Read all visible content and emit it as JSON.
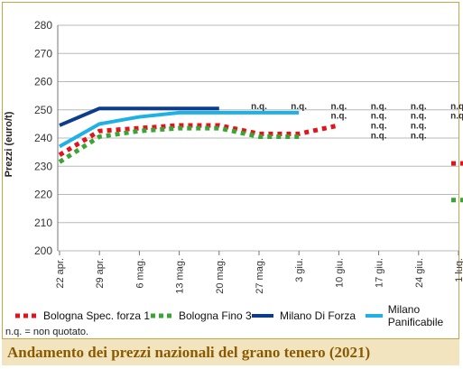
{
  "chart_data": {
    "type": "line",
    "title": "Andamento dei prezzi nazionali del grano tenero (2021)",
    "ylabel": "Prezzi (euro/t)",
    "xlabel": "",
    "ylim": [
      200,
      280
    ],
    "yticks": [
      "200",
      "210",
      "220",
      "230",
      "240",
      "250",
      "260",
      "270",
      "280"
    ],
    "categories": [
      "22 apr.",
      "29 apr.",
      "6 mag.",
      "13 mag.",
      "20 mag.",
      "27 mag.",
      "3 giu.",
      "10 giu.",
      "17 giu.",
      "24 giu.",
      "1 lug."
    ],
    "grid": "horizontal",
    "legend_position": "bottom",
    "series": [
      {
        "name": "Bologna Spec. forza 1",
        "color": "#e3121b",
        "style": "dotted",
        "values": [
          234,
          242.5,
          243.5,
          244.5,
          244.5,
          241.5,
          241.5,
          244.5,
          null,
          null,
          231
        ],
        "nq_label": "n.q."
      },
      {
        "name": "Bologna Fino 3",
        "color": "#3aa535",
        "style": "dotted",
        "values": [
          231.5,
          240.5,
          242.5,
          243.5,
          243.5,
          240.5,
          240.5,
          null,
          null,
          null,
          218
        ],
        "nq_label": "n.q."
      },
      {
        "name": "Milano Di Forza",
        "color": "#0d3c8c",
        "style": "solid",
        "values": [
          244.5,
          250.5,
          250.5,
          250.5,
          250.5,
          null,
          null,
          null,
          null,
          null,
          null
        ],
        "nq_label": "n.q."
      },
      {
        "name": "Milano Panificabile",
        "color": "#1fb1e6",
        "style": "solid",
        "values": [
          237,
          245,
          247.5,
          249,
          249,
          249,
          249,
          null,
          null,
          null,
          null
        ],
        "nq_label": "n.q."
      }
    ],
    "nq_marks": [
      {
        "x": "27 mag.",
        "value": 250,
        "label": "n.q."
      },
      {
        "x": "3 giu.",
        "value": 250,
        "label": "n.q."
      },
      {
        "x": "10 giu.",
        "value": 250,
        "label": "n.q."
      },
      {
        "x": "10 giu.",
        "value": 246.5,
        "label": "n.q."
      },
      {
        "x": "17 giu.",
        "value": 250,
        "label": "n.q."
      },
      {
        "x": "17 giu.",
        "value": 246.5,
        "label": "n.q."
      },
      {
        "x": "17 giu.",
        "value": 243,
        "label": "n.q."
      },
      {
        "x": "17 giu.",
        "value": 239.5,
        "label": "n.q."
      },
      {
        "x": "24 giu.",
        "value": 250,
        "label": "n.q."
      },
      {
        "x": "24 giu.",
        "value": 246.5,
        "label": "n.q."
      },
      {
        "x": "24 giu.",
        "value": 243,
        "label": "n.q."
      },
      {
        "x": "24 giu.",
        "value": 239.5,
        "label": "n.q."
      },
      {
        "x": "1 lug.",
        "value": 250,
        "label": "n.q."
      },
      {
        "x": "1 lug.",
        "value": 246.5,
        "label": "n.q."
      }
    ]
  },
  "note": "n.q. = non quotato."
}
